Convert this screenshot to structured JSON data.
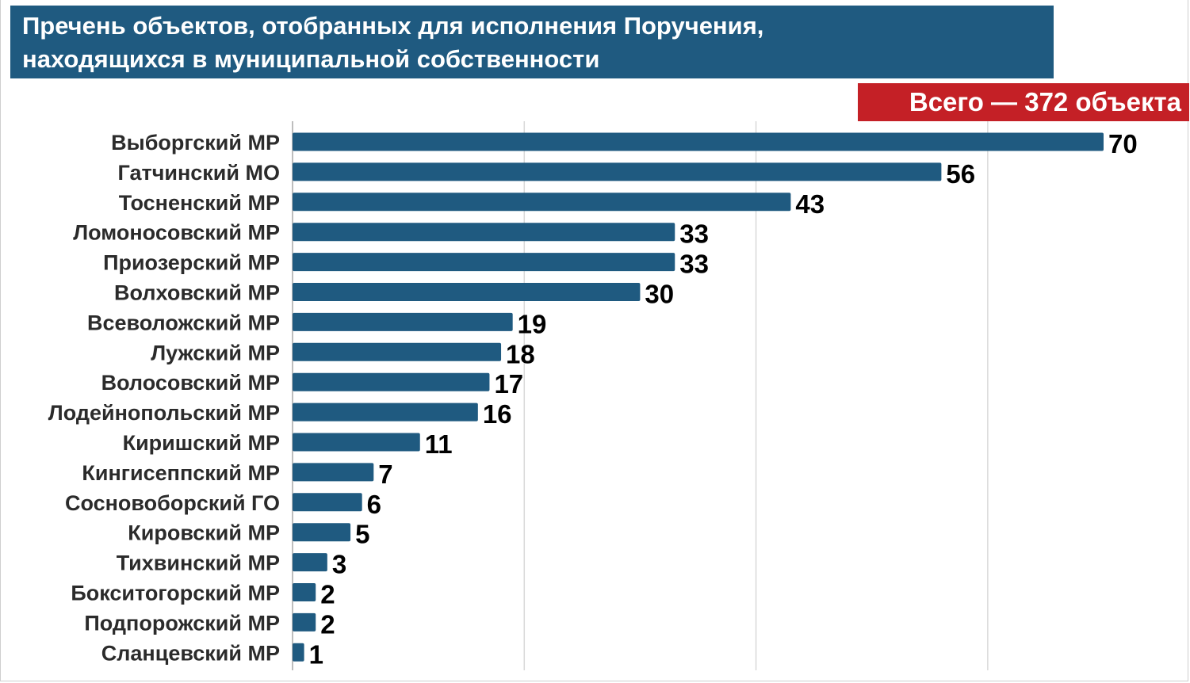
{
  "header": {
    "title_line1": "Пречень объектов, отобранных для исполнения Поручения,",
    "title_line2": "находящихся в муниципальной собственности",
    "total_badge": "Всего — 372 объекта"
  },
  "colors": {
    "banner": "#1f5a80",
    "bar": "#1f5a80",
    "badge": "#c42026",
    "grid": "#d9d9d9"
  },
  "chart_data": {
    "type": "bar",
    "orientation": "horizontal",
    "title": "Пречень объектов, отобранных для исполнения Поручения, находящихся в муниципальной собственности",
    "categories": [
      "Выборгский МР",
      "Гатчинский МО",
      "Тосненский МР",
      "Ломоносовский МР",
      "Приозерский МР",
      "Волховский МР",
      "Всеволожский МР",
      "Лужский МР",
      "Волосовский МР",
      "Лодейнопольский МР",
      "Киришский МР",
      "Кингисеппский МР",
      "Сосновоборский ГО",
      "Кировский МР",
      "Тихвинский МР",
      "Бокситогорский МР",
      "Подпорожский МР",
      "Сланцевский МР"
    ],
    "values": [
      70,
      56,
      43,
      33,
      33,
      30,
      19,
      18,
      17,
      16,
      11,
      7,
      6,
      5,
      3,
      2,
      2,
      1
    ],
    "xlim": [
      0,
      70
    ],
    "gridlines": [
      20,
      40,
      60
    ],
    "grid": true,
    "xlabel": "",
    "ylabel": ""
  }
}
